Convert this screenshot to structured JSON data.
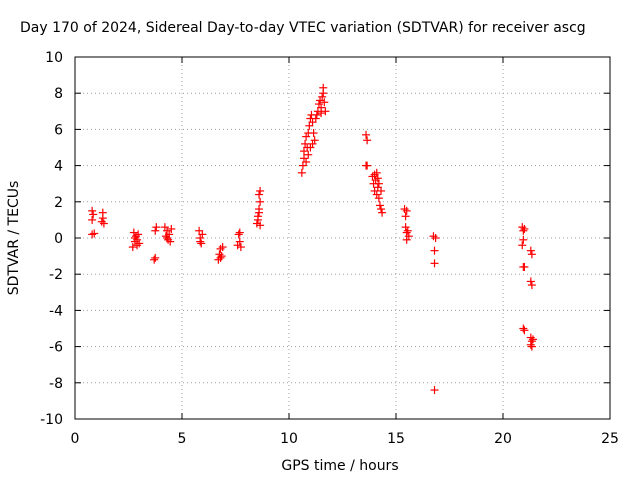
{
  "chart_data": {
    "type": "scatter",
    "title": "Day 170 of 2024, Sidereal Day-to-day VTEC variation (SDTVAR) for receiver ascg",
    "xlabel": "GPS time / hours",
    "ylabel": "SDTVAR / TECUs",
    "xlim": [
      0,
      25
    ],
    "ylim": [
      -10,
      10
    ],
    "xticks": [
      0,
      5,
      10,
      15,
      20,
      25
    ],
    "yticks": [
      -10,
      -8,
      -6,
      -4,
      -2,
      0,
      2,
      4,
      6,
      8,
      10
    ],
    "grid": true,
    "marker": "+",
    "color": "#ff0000",
    "series": [
      {
        "name": "SDTVAR",
        "points": [
          [
            0.8,
            0.2
          ],
          [
            0.8,
            1.0
          ],
          [
            0.85,
            1.3
          ],
          [
            0.8,
            1.5
          ],
          [
            0.9,
            0.25
          ],
          [
            1.25,
            0.9
          ],
          [
            1.3,
            1.1
          ],
          [
            1.3,
            1.4
          ],
          [
            1.35,
            0.8
          ],
          [
            2.7,
            -0.5
          ],
          [
            2.75,
            0.3
          ],
          [
            2.8,
            -0.2
          ],
          [
            2.85,
            0.1
          ],
          [
            2.9,
            -0.4
          ],
          [
            2.95,
            0.2
          ],
          [
            3.0,
            -0.3
          ],
          [
            2.8,
            0.0
          ],
          [
            2.9,
            -0.1
          ],
          [
            3.7,
            -1.2
          ],
          [
            3.75,
            -1.1
          ],
          [
            3.75,
            0.4
          ],
          [
            3.8,
            0.6
          ],
          [
            4.2,
            0.6
          ],
          [
            4.25,
            0.1
          ],
          [
            4.3,
            0.4
          ],
          [
            4.35,
            -0.1
          ],
          [
            4.4,
            0.2
          ],
          [
            4.45,
            -0.2
          ],
          [
            4.5,
            0.5
          ],
          [
            4.3,
            0.0
          ],
          [
            5.8,
            0.4
          ],
          [
            5.85,
            0.0
          ],
          [
            5.9,
            -0.3
          ],
          [
            5.95,
            0.2
          ],
          [
            5.85,
            -0.2
          ],
          [
            6.7,
            -1.2
          ],
          [
            6.75,
            -0.9
          ],
          [
            6.8,
            -0.6
          ],
          [
            6.85,
            -1.0
          ],
          [
            6.9,
            -0.5
          ],
          [
            6.8,
            -1.1
          ],
          [
            7.6,
            -0.4
          ],
          [
            7.65,
            0.2
          ],
          [
            7.7,
            -0.2
          ],
          [
            7.7,
            0.3
          ],
          [
            7.75,
            -0.5
          ],
          [
            8.5,
            0.8
          ],
          [
            8.55,
            1.2
          ],
          [
            8.6,
            1.6
          ],
          [
            8.65,
            2.0
          ],
          [
            8.6,
            2.4
          ],
          [
            8.65,
            2.6
          ],
          [
            8.55,
            1.0
          ],
          [
            8.6,
            1.4
          ],
          [
            8.65,
            0.7
          ],
          [
            10.6,
            3.6
          ],
          [
            10.65,
            4.0
          ],
          [
            10.7,
            4.4
          ],
          [
            10.7,
            4.8
          ],
          [
            10.75,
            5.2
          ],
          [
            10.8,
            5.6
          ],
          [
            10.85,
            5.0
          ],
          [
            10.9,
            5.8
          ],
          [
            10.95,
            6.2
          ],
          [
            11.0,
            6.6
          ],
          [
            11.05,
            6.8
          ],
          [
            11.1,
            6.4
          ],
          [
            11.15,
            5.8
          ],
          [
            11.2,
            5.4
          ],
          [
            11.1,
            5.2
          ],
          [
            11.0,
            5.0
          ],
          [
            10.9,
            4.6
          ],
          [
            10.8,
            4.2
          ],
          [
            11.25,
            6.6
          ],
          [
            11.3,
            6.8
          ],
          [
            11.35,
            7.0
          ],
          [
            11.4,
            7.4
          ],
          [
            11.45,
            7.6
          ],
          [
            11.5,
            7.2
          ],
          [
            11.55,
            7.8
          ],
          [
            11.6,
            8.0
          ],
          [
            11.6,
            8.3
          ],
          [
            11.65,
            7.5
          ],
          [
            11.7,
            7.0
          ],
          [
            11.5,
            6.9
          ],
          [
            13.6,
            5.7
          ],
          [
            13.65,
            5.4
          ],
          [
            13.6,
            4.0
          ],
          [
            13.65,
            4.0
          ],
          [
            13.9,
            3.4
          ],
          [
            13.95,
            3.0
          ],
          [
            14.0,
            2.6
          ],
          [
            14.05,
            3.2
          ],
          [
            14.1,
            3.6
          ],
          [
            14.15,
            2.8
          ],
          [
            14.2,
            2.2
          ],
          [
            14.2,
            3.0
          ],
          [
            14.25,
            1.8
          ],
          [
            14.3,
            2.6
          ],
          [
            14.3,
            1.6
          ],
          [
            14.35,
            1.4
          ],
          [
            14.1,
            2.4
          ],
          [
            14.0,
            3.5
          ],
          [
            14.15,
            3.3
          ],
          [
            15.4,
            1.6
          ],
          [
            15.45,
            1.2
          ],
          [
            15.45,
            0.6
          ],
          [
            15.5,
            0.3
          ],
          [
            15.5,
            -0.1
          ],
          [
            15.55,
            0.4
          ],
          [
            15.6,
            0.1
          ],
          [
            15.5,
            1.5
          ],
          [
            16.75,
            0.1
          ],
          [
            16.8,
            -0.7
          ],
          [
            16.8,
            -1.4
          ],
          [
            16.85,
            0.0
          ],
          [
            16.8,
            -8.4
          ],
          [
            20.9,
            0.6
          ],
          [
            20.95,
            0.4
          ],
          [
            20.95,
            -0.1
          ],
          [
            20.9,
            -0.4
          ],
          [
            21.0,
            0.5
          ],
          [
            20.95,
            -1.6
          ],
          [
            21.0,
            -1.6
          ],
          [
            20.95,
            -5.0
          ],
          [
            21.0,
            -5.1
          ],
          [
            21.3,
            -0.7
          ],
          [
            21.35,
            -0.9
          ],
          [
            21.3,
            -2.4
          ],
          [
            21.35,
            -2.6
          ],
          [
            21.3,
            -5.5
          ],
          [
            21.35,
            -5.7
          ],
          [
            21.3,
            -5.9
          ],
          [
            21.35,
            -6.0
          ],
          [
            21.4,
            -5.6
          ]
        ]
      }
    ]
  }
}
